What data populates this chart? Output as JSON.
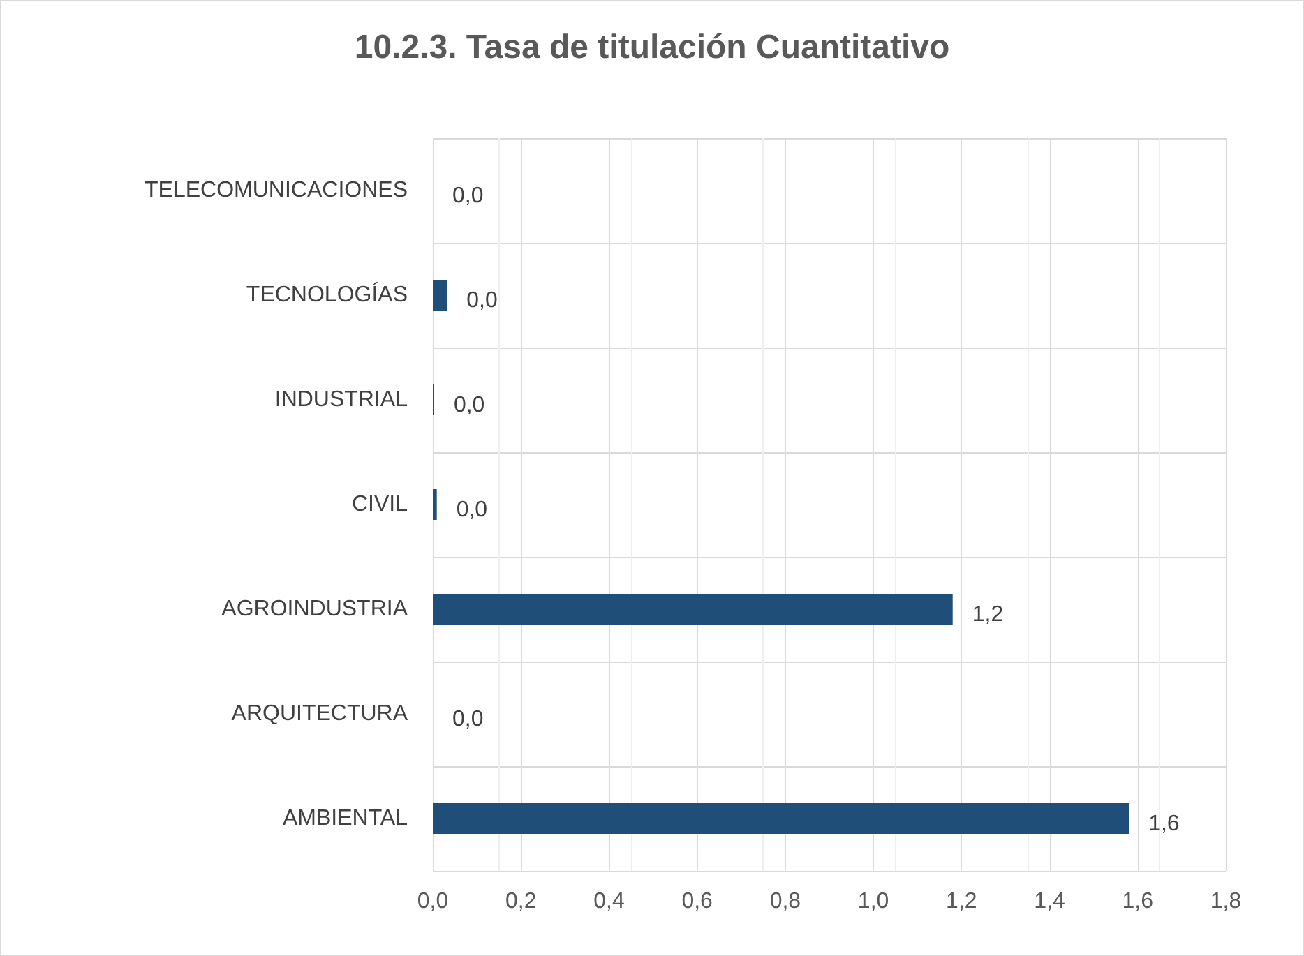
{
  "chart_data": {
    "type": "bar",
    "orientation": "horizontal",
    "title": "10.2.3. Tasa de titulación Cuantitativo",
    "categories": [
      "TELECOMUNICACIONES",
      "TECNOLOGÍAS",
      "INDUSTRIAL",
      "CIVIL",
      "AGROINDUSTRIA",
      "ARQUITECTURA",
      "AMBIENTAL"
    ],
    "values": [
      0,
      0.032,
      0.003,
      0.009,
      1.18,
      0,
      1.58
    ],
    "value_labels": [
      "0,0",
      "0,0",
      "0,0",
      "0,0",
      "1,2",
      "0,0",
      "1,6"
    ],
    "color": "#1f4e79",
    "xlim": [
      0,
      1.8
    ],
    "xticks": [
      {
        "value": 0,
        "label": "0,0"
      },
      {
        "value": 0.2,
        "label": "0,2"
      },
      {
        "value": 0.4,
        "label": "0,4"
      },
      {
        "value": 0.6,
        "label": "0,6"
      },
      {
        "value": 0.8,
        "label": "0,8"
      },
      {
        "value": 1,
        "label": "1,0"
      },
      {
        "value": 1.2,
        "label": "1,2"
      },
      {
        "value": 1.4,
        "label": "1,4"
      },
      {
        "value": 1.6,
        "label": "1,6"
      },
      {
        "value": 1.8,
        "label": "1,8"
      }
    ],
    "grid": true
  }
}
